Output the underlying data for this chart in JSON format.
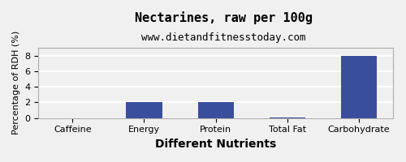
{
  "title": "Nectarines, raw per 100g",
  "subtitle": "www.dietandfitnesstoday.com",
  "categories": [
    "Caffeine",
    "Energy",
    "Protein",
    "Total Fat",
    "Carbohydrate"
  ],
  "values": [
    0,
    2,
    2,
    0.1,
    8
  ],
  "bar_color": "#3a4f9b",
  "xlabel": "Different Nutrients",
  "ylabel": "Percentage of RDH (%)",
  "ylim": [
    0,
    9
  ],
  "yticks": [
    0,
    2,
    4,
    6,
    8
  ],
  "background_color": "#f0f0f0",
  "plot_bg_color": "#f0f0f0",
  "title_fontsize": 11,
  "subtitle_fontsize": 9,
  "xlabel_fontsize": 10,
  "ylabel_fontsize": 8,
  "tick_fontsize": 8,
  "grid_color": "#ffffff",
  "border_color": "#aaaaaa"
}
